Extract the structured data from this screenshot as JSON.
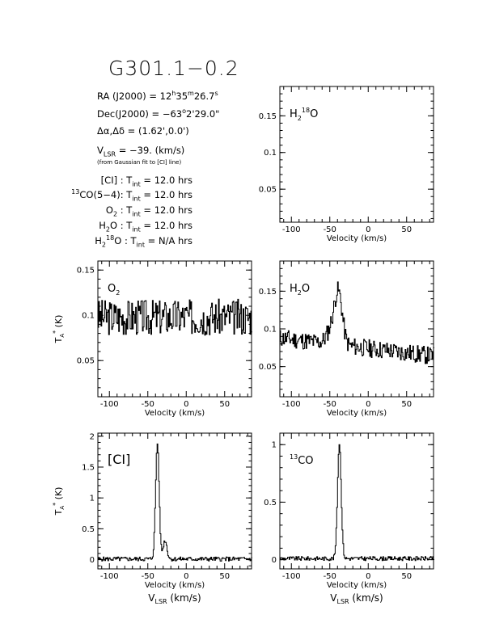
{
  "header": {
    "title": "G301.1−0.2",
    "ra_prefix": "RA (J2000) =  12",
    "ra_h": "h",
    "ra_mid": "35",
    "ra_m": "m",
    "ra_sec": "26.7",
    "ra_s": "s",
    "dec_prefix": "Dec(J2000) = −63",
    "dec_deg": "o",
    "dec_rest": "2'29.0\"",
    "offset": "Δα,Δδ = (1.62',0.0')",
    "vlsr_v": "V",
    "vlsr_sub": "LSR",
    "vlsr_rest": " = −39. (km/s)",
    "vlsr_note": "(from Gaussian fit to [CI] line)",
    "integrations": [
      {
        "pre": "",
        "sup": "",
        "name": "[CI]",
        "sub2": "",
        "name2": "",
        "tint": " : T",
        "tsub": "int",
        "val": " = 12.0 hrs"
      },
      {
        "pre": "",
        "sup": "13",
        "name": "CO(5−4)",
        "sub2": "",
        "name2": "",
        "tint": ": T",
        "tsub": "int",
        "val": " = 12.0 hrs"
      },
      {
        "pre": "",
        "sup": "",
        "name": "O",
        "sub2": "2",
        "name2": "",
        "tint": " : T",
        "tsub": "int",
        "val": " = 12.0 hrs"
      },
      {
        "pre": "",
        "sup": "",
        "name": "H",
        "sub2": "2",
        "name2": "O",
        "tint": " : T",
        "tsub": "int",
        "val": " = 12.0 hrs"
      },
      {
        "pre": "",
        "sup": "",
        "name": "H",
        "sub2": "2",
        "name2": "18O",
        "tint": " : T",
        "tsub": "int",
        "val": " = N/A hrs"
      }
    ]
  },
  "chart_data": [
    {
      "id": "h218o",
      "type": "line",
      "label": "H2 18O",
      "xlabel": "Velocity (km/s)",
      "ylabel": "",
      "xlim": [
        -115,
        85
      ],
      "ylim": [
        0.005,
        0.19
      ],
      "xticks": [
        -100,
        -50,
        0,
        50
      ],
      "yticks": [
        0.05,
        0.1,
        0.15
      ],
      "ytick_labels": [
        "0.05",
        "0.1",
        "0.15"
      ],
      "series": []
    },
    {
      "id": "o2",
      "type": "line",
      "label": "O2",
      "xlabel": "Velocity (km/s)",
      "ylabel": "T_A* (K)",
      "xlim": [
        -115,
        85
      ],
      "ylim": [
        0.01,
        0.16
      ],
      "xticks": [
        -100,
        -50,
        0,
        50
      ],
      "yticks": [
        0.05,
        0.1,
        0.15
      ],
      "ytick_labels": [
        "0.05",
        "0.1",
        "0.15"
      ],
      "series": [
        {
          "noise": {
            "base": 0.098,
            "amp": 0.02,
            "seed": 3,
            "step": 1.0
          },
          "peaks": []
        }
      ]
    },
    {
      "id": "h2o",
      "type": "line",
      "label": "H2O",
      "xlabel": "Velocity (km/s)",
      "ylabel": "",
      "xlim": [
        -115,
        85
      ],
      "ylim": [
        0.01,
        0.19
      ],
      "xticks": [
        -100,
        -50,
        0,
        50
      ],
      "yticks": [
        0.05,
        0.1,
        0.15
      ],
      "ytick_labels": [
        "0.05",
        "0.1",
        "0.15"
      ],
      "series": [
        {
          "noise": {
            "base": 0.088,
            "amp": 0.012,
            "seed": 11,
            "step": 1.0,
            "slope": -0.00012
          },
          "peaks": [
            {
              "center": -39,
              "height": 0.065,
              "width": 5
            },
            {
              "center": -48,
              "height": 0.02,
              "width": 6
            }
          ]
        }
      ]
    },
    {
      "id": "ci",
      "type": "line",
      "label": "[CI]",
      "xlabel": "Velocity (km/s)",
      "ylabel": "T_A* (K)",
      "xlim": [
        -115,
        85
      ],
      "ylim": [
        -0.15,
        2.05
      ],
      "xticks": [
        -100,
        -50,
        0,
        50
      ],
      "yticks": [
        0,
        0.5,
        1,
        1.5,
        2
      ],
      "ytick_labels": [
        "0",
        "0.5",
        "1",
        "1.5",
        "2"
      ],
      "series": [
        {
          "noise": {
            "base": 0.01,
            "amp": 0.035,
            "seed": 5,
            "step": 1.0
          },
          "peaks": [
            {
              "center": -38,
              "height": 1.88,
              "width": 2.3
            },
            {
              "center": -28,
              "height": 0.3,
              "width": 2.5
            }
          ]
        }
      ]
    },
    {
      "id": "13co",
      "type": "line",
      "label": "13CO",
      "xlabel": "Velocity (km/s)",
      "ylabel": "",
      "xlim": [
        -115,
        85
      ],
      "ylim": [
        -0.08,
        1.1
      ],
      "xticks": [
        -100,
        -50,
        0,
        50
      ],
      "yticks": [
        0,
        0.5,
        1
      ],
      "ytick_labels": [
        "0",
        "0.5",
        "1"
      ],
      "series": [
        {
          "noise": {
            "base": 0.01,
            "amp": 0.018,
            "seed": 9,
            "step": 1.0
          },
          "peaks": [
            {
              "center": -38,
              "height": 1.0,
              "width": 2.4
            }
          ]
        }
      ]
    }
  ],
  "bottom_xlabel_v": "V",
  "bottom_xlabel_sub": "LSR",
  "bottom_xlabel_rest": " (km/s)"
}
